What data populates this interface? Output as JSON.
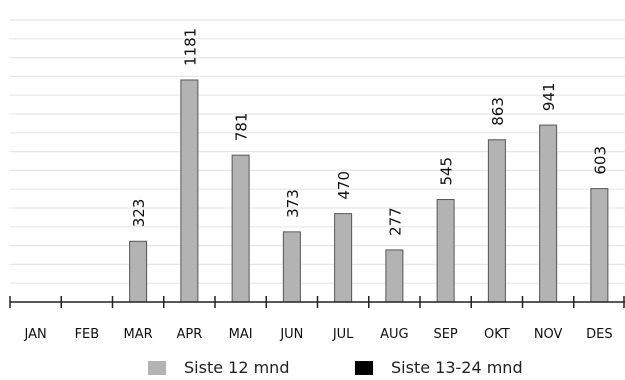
{
  "chart_data": {
    "type": "bar",
    "categories": [
      "JAN",
      "FEB",
      "MAR",
      "APR",
      "MAI",
      "JUN",
      "JUL",
      "AUG",
      "SEP",
      "OKT",
      "NOV",
      "DES"
    ],
    "series": [
      {
        "name": "Siste 12 mnd",
        "color": "#b3b3b3",
        "values": [
          null,
          null,
          323,
          1181,
          781,
          373,
          470,
          277,
          545,
          863,
          941,
          603
        ],
        "labels": [
          "",
          "",
          "323",
          "1181",
          "781",
          "373",
          "470",
          "277",
          "545",
          "863",
          "941",
          "603"
        ]
      },
      {
        "name": "Siste 13-24 mnd",
        "color": "#000000",
        "values": [
          null,
          null,
          null,
          null,
          null,
          null,
          null,
          null,
          null,
          null,
          null,
          null
        ]
      }
    ],
    "ylim": [
      0,
      1500
    ],
    "grid": true,
    "legend_position": "bottom"
  }
}
